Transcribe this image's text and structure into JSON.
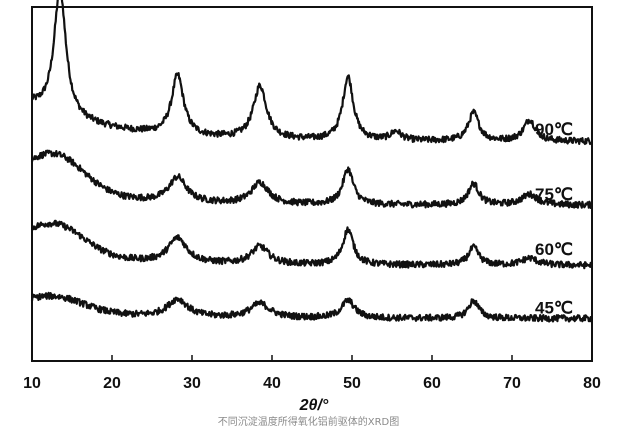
{
  "caption": "不同沉淀温度所得氧化铝前驱体的XRD图",
  "colors": {
    "line": "#111111",
    "axis": "#111111",
    "caption": "#8a8a8a",
    "background": "#ffffff"
  },
  "chart_data": {
    "type": "line",
    "title": "",
    "xlabel": "2θ/°",
    "ylabel": "",
    "xlim": [
      10,
      80
    ],
    "xticks": [
      10,
      20,
      30,
      40,
      50,
      60,
      70,
      80
    ],
    "grid": false,
    "legend": "series labels at right end of each curve",
    "y_axis_scale": "intensity (arbitrary units, no tick labels)",
    "peak_positions_2theta": [
      13.5,
      28.2,
      38.5,
      49.5,
      55.5,
      65.2,
      72.2
    ],
    "series": [
      {
        "name": "90℃",
        "baseline": 0.62,
        "broad_hump": 0.0,
        "peaks": [
          {
            "x": 13.5,
            "height": 0.36,
            "width": 0.9
          },
          {
            "x": 28.2,
            "height": 0.17,
            "width": 0.9
          },
          {
            "x": 38.5,
            "height": 0.15,
            "width": 1.0
          },
          {
            "x": 49.5,
            "height": 0.18,
            "width": 0.8
          },
          {
            "x": 55.5,
            "height": 0.025,
            "width": 0.8
          },
          {
            "x": 65.2,
            "height": 0.08,
            "width": 0.8
          },
          {
            "x": 72.2,
            "height": 0.06,
            "width": 0.9
          }
        ],
        "curvature": 0.1
      },
      {
        "name": "75℃",
        "baseline": 0.44,
        "broad_hump": 0.1,
        "peaks": [
          {
            "x": 28.2,
            "height": 0.07,
            "width": 1.3
          },
          {
            "x": 38.5,
            "height": 0.06,
            "width": 1.3
          },
          {
            "x": 49.5,
            "height": 0.1,
            "width": 0.8
          },
          {
            "x": 65.2,
            "height": 0.06,
            "width": 0.8
          },
          {
            "x": 72.2,
            "height": 0.03,
            "width": 1.2
          }
        ],
        "curvature": 0.06
      },
      {
        "name": "60℃",
        "baseline": 0.27,
        "broad_hump": 0.08,
        "peaks": [
          {
            "x": 28.2,
            "height": 0.07,
            "width": 1.4
          },
          {
            "x": 38.5,
            "height": 0.05,
            "width": 1.3
          },
          {
            "x": 49.5,
            "height": 0.1,
            "width": 0.8
          },
          {
            "x": 65.2,
            "height": 0.05,
            "width": 0.8
          },
          {
            "x": 72.2,
            "height": 0.02,
            "width": 1.2
          }
        ],
        "curvature": 0.05
      },
      {
        "name": "45℃",
        "baseline": 0.12,
        "broad_hump": 0.04,
        "peaks": [
          {
            "x": 28.2,
            "height": 0.05,
            "width": 1.5
          },
          {
            "x": 38.5,
            "height": 0.04,
            "width": 1.5
          },
          {
            "x": 49.5,
            "height": 0.05,
            "width": 1.0
          },
          {
            "x": 65.2,
            "height": 0.05,
            "width": 0.8
          }
        ],
        "curvature": 0.03
      }
    ]
  }
}
